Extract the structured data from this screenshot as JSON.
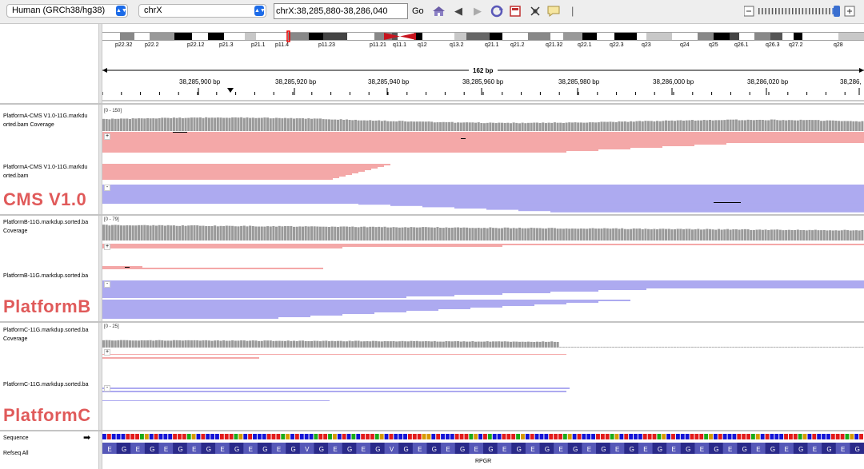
{
  "toolbar": {
    "genome": "Human (GRCh38/hg38)",
    "chromosome": "chrX",
    "locus": "chrX:38,285,880-38,286,040",
    "go_label": "Go"
  },
  "ideogram": {
    "bands": [
      "p22.32",
      "p22.2",
      "p22.12",
      "p21.3",
      "p21.1",
      "p11.4",
      "p11.23",
      "p11.21",
      "q11.1",
      "q12",
      "q13.2",
      "q21.1",
      "q21.2",
      "q21.32",
      "q22.1",
      "q22.3",
      "q23",
      "q24",
      "q25",
      "q26.1",
      "q26.3",
      "q27.2",
      "q28"
    ]
  },
  "ruler": {
    "span_label": "162 bp",
    "positions": [
      "38,285,900 bp",
      "38,285,920 bp",
      "38,285,940 bp",
      "38,285,960 bp",
      "38,285,980 bp",
      "38,286,000 bp",
      "38,286,020 bp",
      "38,286,"
    ]
  },
  "tracks": {
    "a_cov_label": "PlatformA-CMS V1.0-11G.markdu orted.bam Coverage",
    "a_cov_range": "[0 - 150]",
    "a_reads_label": "PlatformA-CMS V1.0-11G.markdu orted.bam",
    "a_group": "CMS V1.0",
    "b_cov_label": "PlatformB-11G.markdup.sorted.ba Coverage",
    "b_cov_range": "[0 - 79]",
    "b_reads_label": "PlatformB-11G.markdup.sorted.ba",
    "b_group": "PlatformB",
    "c_cov_label": "PlatformC-11G.markdup.sorted.ba Coverage",
    "c_cov_range": "[0 - 25]",
    "c_reads_label": "PlatformC-11G.markdup.sorted.ba",
    "c_group": "PlatformC",
    "plus": "+",
    "minus": "-"
  },
  "bottom": {
    "sequence_label": "Sequence",
    "refseq_label": "Refseq All",
    "gene_name": "RPGR",
    "aa_letter": "E"
  },
  "colors": {
    "forward_read": "#f4a8a8",
    "reverse_read": "#adaaf0",
    "coverage": "#9a9a9a",
    "seq_a": "#1aab1a",
    "seq_c": "#1515d6",
    "seq_g": "#d89a00",
    "seq_t": "#e21c1c",
    "gene": "#2a2a8a"
  }
}
